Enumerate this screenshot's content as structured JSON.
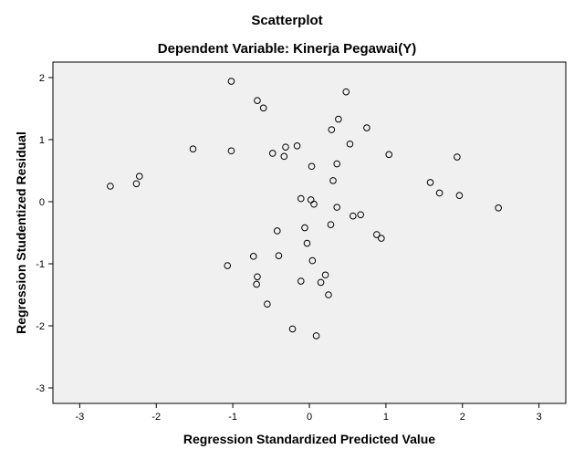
{
  "chart_data": {
    "type": "scatter",
    "title": "Scatterplot",
    "subtitle": "Dependent Variable: Kinerja Pegawai(Y)",
    "xlabel": "Regression Standardized Predicted Value",
    "ylabel": "Regression Studentized Residual",
    "xlim": [
      -3.35,
      3.35
    ],
    "ylim": [
      -3.25,
      2.25
    ],
    "xticks": [
      -3,
      -2,
      -1,
      0,
      1,
      2,
      3
    ],
    "yticks": [
      -3,
      -2,
      -1,
      0,
      1,
      2
    ],
    "xtick_labels": [
      "-3",
      "-2",
      "-1",
      "0",
      "1",
      "2",
      "3"
    ],
    "ytick_labels": [
      "-3",
      "-2",
      "-1",
      "0",
      "1",
      "2"
    ],
    "grid": false,
    "plot_background": "#f0f0f0",
    "marker": "open-circle",
    "points": [
      {
        "x": -1.02,
        "y": 1.94
      },
      {
        "x": -0.68,
        "y": 1.63
      },
      {
        "x": -0.6,
        "y": 1.51
      },
      {
        "x": 0.48,
        "y": 1.77
      },
      {
        "x": 0.38,
        "y": 1.33
      },
      {
        "x": 0.75,
        "y": 1.19
      },
      {
        "x": 0.29,
        "y": 1.16
      },
      {
        "x": 0.53,
        "y": 0.93
      },
      {
        "x": -1.52,
        "y": 0.85
      },
      {
        "x": -1.02,
        "y": 0.82
      },
      {
        "x": -0.48,
        "y": 0.78
      },
      {
        "x": -0.31,
        "y": 0.88
      },
      {
        "x": -0.16,
        "y": 0.9
      },
      {
        "x": -0.33,
        "y": 0.73
      },
      {
        "x": 1.04,
        "y": 0.76
      },
      {
        "x": 1.93,
        "y": 0.72
      },
      {
        "x": 0.36,
        "y": 0.61
      },
      {
        "x": 0.03,
        "y": 0.57
      },
      {
        "x": -2.22,
        "y": 0.41
      },
      {
        "x": -2.26,
        "y": 0.29
      },
      {
        "x": -2.6,
        "y": 0.25
      },
      {
        "x": 0.31,
        "y": 0.34
      },
      {
        "x": 1.58,
        "y": 0.31
      },
      {
        "x": 1.7,
        "y": 0.14
      },
      {
        "x": 1.96,
        "y": 0.1
      },
      {
        "x": -0.11,
        "y": 0.05
      },
      {
        "x": 0.02,
        "y": 0.03
      },
      {
        "x": 0.06,
        "y": -0.04
      },
      {
        "x": 0.36,
        "y": -0.09
      },
      {
        "x": 2.47,
        "y": -0.1
      },
      {
        "x": 0.67,
        "y": -0.21
      },
      {
        "x": 0.57,
        "y": -0.23
      },
      {
        "x": 0.28,
        "y": -0.37
      },
      {
        "x": -0.06,
        "y": -0.42
      },
      {
        "x": -0.42,
        "y": -0.47
      },
      {
        "x": 0.88,
        "y": -0.53
      },
      {
        "x": 0.94,
        "y": -0.59
      },
      {
        "x": -0.03,
        "y": -0.67
      },
      {
        "x": -0.73,
        "y": -0.88
      },
      {
        "x": -0.4,
        "y": -0.87
      },
      {
        "x": 0.04,
        "y": -0.95
      },
      {
        "x": -1.07,
        "y": -1.03
      },
      {
        "x": -0.68,
        "y": -1.21
      },
      {
        "x": -0.69,
        "y": -1.33
      },
      {
        "x": -0.11,
        "y": -1.28
      },
      {
        "x": 0.21,
        "y": -1.18
      },
      {
        "x": 0.15,
        "y": -1.3
      },
      {
        "x": 0.25,
        "y": -1.5
      },
      {
        "x": -0.55,
        "y": -1.65
      },
      {
        "x": -0.22,
        "y": -2.05
      },
      {
        "x": 0.09,
        "y": -2.16
      }
    ]
  }
}
